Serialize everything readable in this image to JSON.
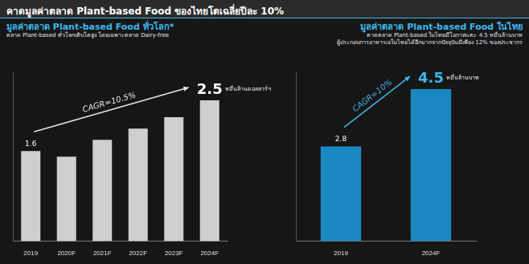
{
  "title": "คาดมูลค่าตลาด Plant-based Food ของไทยโตเฉลี่ยปีละ 10%",
  "chart_data": [
    {
      "type": "bar",
      "title": "มูลค่าตลาด Plant-based Food ทั่วโลก*",
      "subtitle": [
        "ตลาด Plant-based ทั่วโลกเติบโตสูง โดยเฉพาะตลาด Dairy-free"
      ],
      "categories": [
        "2019",
        "2020F",
        "2021F",
        "2022F",
        "2023F",
        "2024F"
      ],
      "values": [
        1.6,
        1.5,
        1.8,
        2.0,
        2.2,
        2.5
      ],
      "value_labels": [
        "1.6",
        null,
        null,
        null,
        null,
        "2.5"
      ],
      "unit": "หมื่นล้านดอลลาร์ฯ",
      "annotation": "CAGR=10.5%",
      "color": "#cfcfcf",
      "ylim": [
        0,
        3
      ],
      "tick_labels": "x",
      "grid": false,
      "data_labels": true
    },
    {
      "type": "bar",
      "title": "มูลค่าตลาด Plant-based Food ในไทย",
      "subtitle": [
        "คาดตลาด Plant-based ในไทยมีโอกาสแตะ 4.5 หมื่นล้านบาท",
        "ผู้ประกอบการอาหารเจในไทยได้อีกมากจากปัจจุบันมีเพียง 12% ของประชากร"
      ],
      "categories": [
        "2019",
        "2024F"
      ],
      "values": [
        2.8,
        4.5
      ],
      "value_labels": [
        "2.8",
        "4.5"
      ],
      "unit": "หมื่นล้านบาท",
      "annotation": "CAGR=10%",
      "color": "#1b87c0",
      "ylim": [
        0,
        5
      ],
      "tick_labels": "x",
      "grid": false,
      "data_labels": true
    }
  ]
}
